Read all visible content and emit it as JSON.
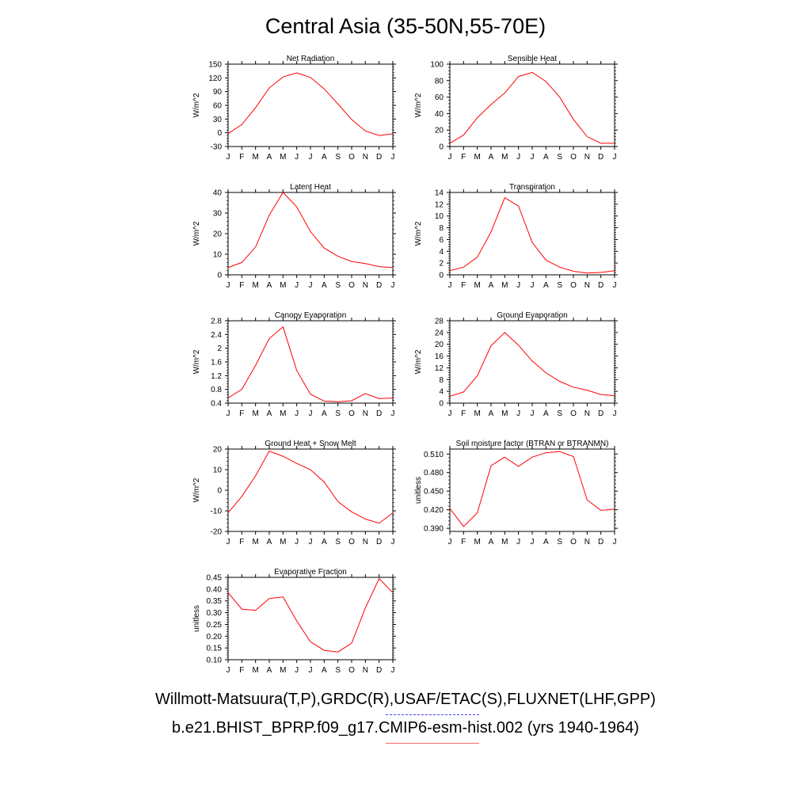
{
  "title": "Central Asia (35-50N,55-70E)",
  "months": [
    "J",
    "F",
    "M",
    "A",
    "M",
    "J",
    "J",
    "A",
    "S",
    "O",
    "N",
    "D",
    "J"
  ],
  "colors": {
    "model": "#ff0000",
    "obs": "#4444ff",
    "axis": "#000000"
  },
  "legend": {
    "obs_label": "Willmott-Matsuura(T,P),GRDC(R),USAF/ETAC(S),FLUXNET(LHF,GPP)",
    "model_label": "b.e21.BHIST_BPRP.f09_g17.CMIP6-esm-hist.002 (yrs 1940-1964)"
  },
  "chart_data": [
    {
      "type": "line",
      "title": "Net Radiation",
      "ylabel": "W/m^2",
      "ylim": [
        -30,
        150
      ],
      "yticks": [
        -30,
        0,
        30,
        60,
        90,
        120,
        150
      ],
      "categories": [
        "J",
        "F",
        "M",
        "A",
        "M",
        "J",
        "J",
        "A",
        "S",
        "O",
        "N",
        "D",
        "J"
      ],
      "series": [
        {
          "values": [
            -2,
            18,
            55,
            98,
            122,
            131,
            121,
            96,
            63,
            29,
            4,
            -6,
            -2
          ]
        }
      ]
    },
    {
      "type": "line",
      "title": "Sensible Heat",
      "ylabel": "W/m^2",
      "ylim": [
        0,
        100
      ],
      "yticks": [
        0,
        20,
        40,
        60,
        80,
        100
      ],
      "categories": [
        "J",
        "F",
        "M",
        "A",
        "M",
        "J",
        "J",
        "A",
        "S",
        "O",
        "N",
        "D",
        "J"
      ],
      "series": [
        {
          "values": [
            4,
            14,
            35,
            51,
            65,
            85,
            90,
            79,
            60,
            33,
            12,
            4,
            4
          ]
        }
      ]
    },
    {
      "type": "line",
      "title": "Latent Heat",
      "ylabel": "W/m^2",
      "ylim": [
        0,
        40
      ],
      "yticks": [
        0,
        10,
        20,
        30,
        40
      ],
      "categories": [
        "J",
        "F",
        "M",
        "A",
        "M",
        "J",
        "J",
        "A",
        "S",
        "O",
        "N",
        "D",
        "J"
      ],
      "series": [
        {
          "values": [
            3.5,
            6,
            13.5,
            29,
            40,
            33,
            21,
            13,
            9,
            6.5,
            5.5,
            4,
            3.5
          ]
        }
      ]
    },
    {
      "type": "line",
      "title": "Transpiration",
      "ylabel": "W/m^2",
      "ylim": [
        0,
        14
      ],
      "yticks": [
        0,
        2,
        4,
        6,
        8,
        10,
        12,
        14
      ],
      "categories": [
        "J",
        "F",
        "M",
        "A",
        "M",
        "J",
        "J",
        "A",
        "S",
        "O",
        "N",
        "D",
        "J"
      ],
      "series": [
        {
          "values": [
            0.7,
            1.3,
            3,
            7.3,
            13.1,
            11.7,
            5.5,
            2.5,
            1.3,
            0.6,
            0.3,
            0.4,
            0.7
          ]
        }
      ]
    },
    {
      "type": "line",
      "title": "Canopy Evaporation",
      "ylabel": "W/m^2",
      "ylim": [
        0.4,
        2.8
      ],
      "yticks": [
        0.4,
        0.8,
        1.2,
        1.6,
        2.0,
        2.4,
        2.8
      ],
      "categories": [
        "J",
        "F",
        "M",
        "A",
        "M",
        "J",
        "J",
        "A",
        "S",
        "O",
        "N",
        "D",
        "J"
      ],
      "series": [
        {
          "values": [
            0.55,
            0.8,
            1.5,
            2.28,
            2.62,
            1.35,
            0.66,
            0.46,
            0.44,
            0.47,
            0.68,
            0.53,
            0.55
          ]
        }
      ]
    },
    {
      "type": "line",
      "title": "Ground Evaporation",
      "ylabel": "W/m^2",
      "ylim": [
        0,
        28
      ],
      "yticks": [
        0,
        4,
        8,
        12,
        16,
        20,
        24,
        28
      ],
      "categories": [
        "J",
        "F",
        "M",
        "A",
        "M",
        "J",
        "J",
        "A",
        "S",
        "O",
        "N",
        "D",
        "J"
      ],
      "series": [
        {
          "values": [
            2.3,
            3.8,
            9.3,
            19.5,
            24,
            19.7,
            14.3,
            10.3,
            7.4,
            5.4,
            4.4,
            2.9,
            2.5
          ]
        }
      ]
    },
    {
      "type": "line",
      "title": "Ground Heat + Snow Melt",
      "ylabel": "W/m^2",
      "ylim": [
        -20,
        20
      ],
      "yticks": [
        -20,
        -10,
        0,
        10,
        20
      ],
      "categories": [
        "J",
        "F",
        "M",
        "A",
        "M",
        "J",
        "J",
        "A",
        "S",
        "O",
        "N",
        "D",
        "J"
      ],
      "series": [
        {
          "values": [
            -11,
            -3,
            7,
            19,
            16.5,
            13,
            10,
            4,
            -5.5,
            -10.5,
            -14,
            -16,
            -11
          ]
        }
      ]
    },
    {
      "type": "line",
      "title": "Soil moisture factor (BTRAN or BTRANMN)",
      "ylabel": "unitless",
      "ylim": [
        0.385,
        0.518
      ],
      "yticks": [
        0.39,
        0.42,
        0.45,
        0.48,
        0.51
      ],
      "ytick_labels": [
        "0.390",
        "0.420",
        "0.450",
        "0.480",
        "0.510"
      ],
      "categories": [
        "J",
        "F",
        "M",
        "A",
        "M",
        "J",
        "J",
        "A",
        "S",
        "O",
        "N",
        "D",
        "J"
      ],
      "series": [
        {
          "values": [
            0.422,
            0.393,
            0.415,
            0.491,
            0.505,
            0.49,
            0.505,
            0.512,
            0.514,
            0.506,
            0.436,
            0.419,
            0.421
          ]
        }
      ]
    },
    {
      "type": "line",
      "title": "Evaporative Fraction",
      "ylabel": "unitless",
      "ylim": [
        0.1,
        0.45
      ],
      "yticks": [
        0.1,
        0.15,
        0.2,
        0.25,
        0.3,
        0.35,
        0.4,
        0.45
      ],
      "ytick_labels": [
        "0.10",
        "0.15",
        "0.20",
        "0.25",
        "0.30",
        "0.35",
        "0.40",
        "0.45"
      ],
      "categories": [
        "J",
        "F",
        "M",
        "A",
        "M",
        "J",
        "J",
        "A",
        "S",
        "O",
        "N",
        "D",
        "J"
      ],
      "series": [
        {
          "values": [
            0.385,
            0.315,
            0.31,
            0.36,
            0.367,
            0.265,
            0.176,
            0.14,
            0.133,
            0.17,
            0.32,
            0.445,
            0.385
          ]
        }
      ]
    }
  ]
}
